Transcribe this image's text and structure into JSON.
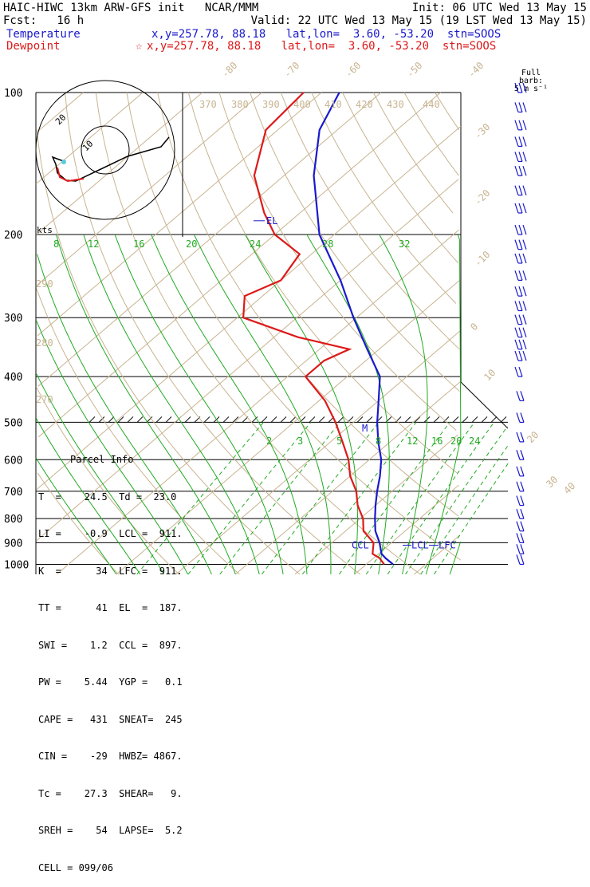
{
  "header": {
    "line1_left": "HAIC-HIWC 13km ARW-GFS init   NCAR/MMM",
    "line1_right": "Init: 06 UTC Wed 13 May 15",
    "line2_left": "Fcst:   16 h",
    "line2_right": "Valid: 22 UTC Wed 13 May 15 (19 LST Wed 13 May 15)",
    "temp_label": "Temperature",
    "temp_info": "x,y=257.78, 88.18   lat,lon=  3.60, -53.20  stn=SOOS",
    "dew_label": "Dewpoint",
    "dew_info": "x,y=257.78, 88.18   lat,lon=  3.60, -53.20  stn=SOOS",
    "dew_symbol": "☆"
  },
  "barb_title": [
    "Full barb:",
    "5 m s⁻¹"
  ],
  "hodograph": {
    "kts": "kts",
    "ring_labels": [
      "10",
      "20"
    ]
  },
  "parcel_info": {
    "title": "Parcel Info",
    "rows": [
      "T  =    24.5  Td =  23.0",
      "LI =    -0.9  LCL =  911.",
      "K  =      34  LFC =  911.",
      "TT =      41  EL  =  187.",
      "SWI =    1.2  CCL =  897.",
      "PW =    5.44  YGP =   0.1",
      "CAPE =   431  SNEAT=  245",
      "CIN =    -29  HWBZ= 4867.",
      "Tc =    27.3  SHEAR=   9.",
      "SREH =    54  LAPSE=  5.2",
      "CELL = 099/06"
    ]
  },
  "chart_data": {
    "type": "line",
    "pressure_labels": [
      "100",
      "200",
      "300",
      "400",
      "500",
      "600",
      "700",
      "800",
      "900",
      "1000"
    ],
    "temp_labels": [
      "-80",
      "-70",
      "-60",
      "-50",
      "-40",
      "-30",
      "-20",
      "-10",
      "0",
      "10",
      "20",
      "30",
      "40"
    ],
    "theta_labels": [
      "370",
      "380",
      "390",
      "400",
      "410",
      "420",
      "430",
      "440",
      "290",
      "280",
      "270"
    ],
    "mixing_labels_upper": [
      "8",
      "12",
      "16",
      "20",
      "24",
      "28",
      "32"
    ],
    "mixing_labels_lower": [
      "2",
      "3",
      "5",
      "8",
      "12",
      "16",
      "20",
      "24"
    ],
    "level_marks": {
      "el": "EL",
      "ccl": "CCL",
      "lcl": "LCL",
      "lfc": "LFC",
      "m": "M"
    },
    "colors": {
      "temperature": "#1a1acc",
      "dewpoint": "#dd1a1a",
      "mixing": "#22aa22",
      "dry": "#c8b490",
      "barbs": "#1a1acc"
    },
    "series": [
      {
        "name": "Temperature",
        "points": [
          [
            1000,
            24.5
          ],
          [
            970,
            22
          ],
          [
            950,
            20.5
          ],
          [
            900,
            18
          ],
          [
            850,
            15
          ],
          [
            800,
            12.5
          ],
          [
            750,
            10
          ],
          [
            700,
            7.5
          ],
          [
            650,
            5
          ],
          [
            600,
            2
          ],
          [
            550,
            -2
          ],
          [
            500,
            -6
          ],
          [
            450,
            -10
          ],
          [
            400,
            -14.5
          ],
          [
            350,
            -22
          ],
          [
            300,
            -30.5
          ],
          [
            250,
            -40
          ],
          [
            200,
            -52.5
          ],
          [
            150,
            -65
          ],
          [
            120,
            -73
          ],
          [
            100,
            -77
          ]
        ]
      },
      {
        "name": "Dewpoint",
        "points": [
          [
            1000,
            23
          ],
          [
            970,
            21
          ],
          [
            950,
            19
          ],
          [
            900,
            17
          ],
          [
            850,
            13
          ],
          [
            800,
            10.5
          ],
          [
            750,
            7
          ],
          [
            700,
            4
          ],
          [
            650,
            0
          ],
          [
            600,
            -3.5
          ],
          [
            550,
            -8
          ],
          [
            500,
            -13
          ],
          [
            450,
            -19
          ],
          [
            400,
            -27
          ],
          [
            370,
            -27
          ],
          [
            350,
            -25
          ],
          [
            330,
            -36
          ],
          [
            300,
            -49
          ],
          [
            270,
            -53
          ],
          [
            250,
            -50
          ],
          [
            220,
            -52
          ],
          [
            200,
            -60
          ],
          [
            180,
            -66
          ],
          [
            150,
            -75
          ],
          [
            120,
            -82
          ],
          [
            100,
            -83
          ]
        ]
      }
    ]
  }
}
